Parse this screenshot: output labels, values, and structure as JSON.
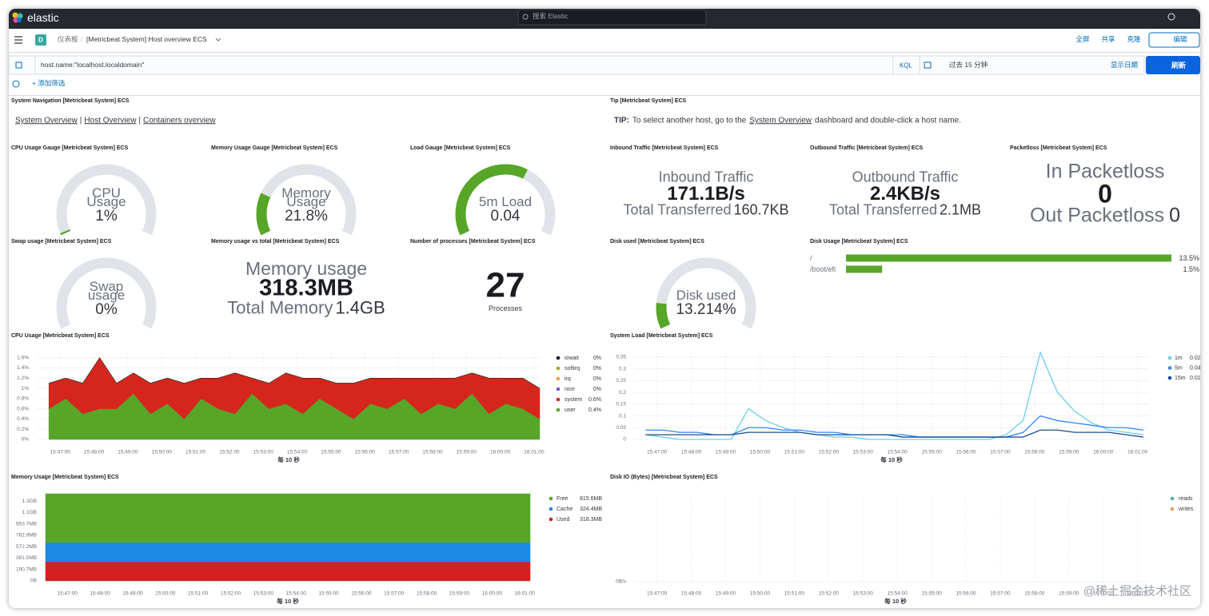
{
  "top_bar": {
    "brand": "elastic",
    "search_placeholder": "搜索 Elastic"
  },
  "nav": {
    "space": "D",
    "breadcrumbs": [
      "仪表板",
      "[Metricbeat System] Host overview ECS"
    ],
    "separator": "/",
    "actions": [
      "全屏",
      "共享",
      "克隆"
    ],
    "edit": "编辑"
  },
  "query": {
    "text": "host.name:\"localhost.localdomain\"",
    "language": "KQL",
    "time_range": "过去 15 分钟",
    "show_dates": "显示日期",
    "refresh": "刷新",
    "add_filter": "+ 添加筛选"
  },
  "navigation": {
    "title": "System Navigation [Metricbeat System] ECS",
    "links": [
      "System Overview",
      "Host Overview",
      "Containers overview"
    ],
    "separator": "|"
  },
  "tip": {
    "title": "Tip [Metricbeat System] ECS",
    "label": "TIP:",
    "text_before": "To select another host, go to the",
    "link": "System Overview",
    "text_after": "dashboard and double-click a host name."
  },
  "gauges": [
    {
      "title": "CPU Usage Gauge [Metricbeat System] ECS",
      "label": "CPU Usage",
      "value": 1,
      "value_label": "1%",
      "range": [
        0,
        100
      ]
    },
    {
      "title": "Memory Usage Gauge [Metricbeat System] ECS",
      "label": "Memory Usage",
      "value": 21.8,
      "value_label": "21.8%",
      "range": [
        0,
        100
      ]
    },
    {
      "title": "Load Gauge [Metricbeat System] ECS",
      "label": "5m Load",
      "value": 0.04,
      "range": [
        0,
        0.065
      ]
    },
    {
      "title": "Swap usage [Metricbeat System] ECS",
      "label": "Swap usage",
      "value": 0,
      "value_label": "0%",
      "range": [
        0,
        100
      ]
    },
    {
      "title": "Disk used [Metricbeat System] ECS",
      "label": "Disk used",
      "value": 13.214,
      "value_label": "13.214%",
      "range": [
        0,
        100
      ]
    }
  ],
  "traffic": [
    {
      "title": "Inbound Traffic [Metricbeat System] ECS",
      "label": "Inbound Traffic",
      "value": "171.1B/s",
      "total_label": "Total Transferred",
      "total_value": "160.7KB"
    },
    {
      "title": "Outbound Traffic [Metricbeat System] ECS",
      "label": "Outbound Traffic",
      "value": "2.4KB/s",
      "total_label": "Total Transferred",
      "total_value": "2.1MB"
    }
  ],
  "packetloss": {
    "title": "Packetloss [Metricbeat System] ECS",
    "in_label": "In Packetloss",
    "in_value": 0,
    "out_label": "Out Packetloss",
    "out_value": 0
  },
  "memory_usage": {
    "title": "Memory usage vs total [Metricbeat System] ECS",
    "label": "Memory usage",
    "value": "318.3MB",
    "total_label": "Total Memory",
    "total_value": "1.4GB"
  },
  "processes": {
    "title": "Number of processes [Metricbeat System] ECS",
    "value": 27,
    "label": "Processes"
  },
  "disk_usage": {
    "title": "Disk Usage [Metricbeat System] ECS",
    "color": "#57a628",
    "rows": [
      {
        "name": "/",
        "value": 13.5,
        "value_label": "13.5%"
      },
      {
        "name": "/boot/efi",
        "value": 1.5,
        "value_label": "1.5%"
      }
    ]
  },
  "chart_data": [
    {
      "type": "area",
      "stacked": true,
      "grid": true,
      "title": "CPU Usage [Metricbeat System] ECS",
      "x_label": "每 10 秒",
      "x": [
        "15:46:40",
        "15:47:10",
        "15:47:40",
        "15:48:10",
        "15:48:40",
        "15:49:10",
        "15:49:40",
        "15:50:10",
        "15:50:40",
        "15:51:10",
        "15:51:40",
        "15:52:10",
        "15:52:40",
        "15:53:10",
        "15:53:40",
        "15:54:10",
        "15:54:40",
        "15:55:10",
        "15:55:40",
        "15:56:10",
        "15:56:40",
        "15:57:10",
        "15:57:40",
        "15:58:10",
        "15:58:40",
        "15:59:10",
        "15:59:40",
        "16:00:10",
        "16:00:40",
        "16:01:10"
      ],
      "xlim": [
        "15:46:20",
        "16:01:10"
      ],
      "xticks": [
        "15:47:00",
        "15:48:00",
        "15:49:00",
        "15:50:00",
        "15:51:00",
        "15:52:00",
        "15:53:00",
        "15:54:00",
        "15:55:00",
        "15:56:00",
        "15:57:00",
        "15:58:00",
        "15:59:00",
        "16:00:00",
        "16:01:00"
      ],
      "ylim": [
        0,
        1.72
      ],
      "yticks": [
        {
          "value": 0,
          "label": "0%"
        },
        {
          "value": 0.2,
          "label": "0.2%"
        },
        {
          "value": 0.4,
          "label": "0.4%"
        },
        {
          "value": 0.6,
          "label": "0.6%"
        },
        {
          "value": 0.8,
          "label": "0.8%"
        },
        {
          "value": 1,
          "label": "1%"
        },
        {
          "value": 1.2,
          "label": "1.2%"
        },
        {
          "value": 1.4,
          "label": "1.4%"
        },
        {
          "value": 1.6,
          "label": "1.6%"
        }
      ],
      "series": [
        {
          "name": "iowait",
          "color": "#1a1c21",
          "legend_value": "0%",
          "values": [
            0,
            0,
            0,
            0,
            0,
            0,
            0,
            0,
            0,
            0,
            0,
            0,
            0,
            0,
            0,
            0,
            0,
            0,
            0,
            0,
            0,
            0,
            0,
            0,
            0,
            0,
            0,
            0,
            0,
            0
          ]
        },
        {
          "name": "softirq",
          "color": "#9fa821",
          "legend_value": "0%",
          "values": [
            0,
            0,
            0,
            0,
            0,
            0,
            0,
            0,
            0,
            0,
            0,
            0,
            0,
            0,
            0,
            0,
            0,
            0,
            0,
            0,
            0,
            0,
            0,
            0,
            0,
            0,
            0,
            0,
            0,
            0
          ]
        },
        {
          "name": "irq",
          "color": "#e7a33a",
          "legend_value": "0%",
          "values": [
            0,
            0,
            0,
            0,
            0,
            0,
            0,
            0,
            0,
            0,
            0,
            0,
            0,
            0,
            0,
            0,
            0,
            0,
            0,
            0,
            0,
            0,
            0,
            0,
            0,
            0,
            0,
            0,
            0,
            0
          ]
        },
        {
          "name": "nice",
          "color": "#6f5bd0",
          "legend_value": "0%",
          "values": [
            0,
            0,
            0,
            0,
            0,
            0,
            0,
            0,
            0,
            0,
            0,
            0,
            0,
            0,
            0,
            0,
            0,
            0,
            0,
            0,
            0,
            0,
            0,
            0,
            0,
            0,
            0,
            0,
            0,
            0
          ]
        },
        {
          "name": "system",
          "color": "#d4261d",
          "legend_value": "0.6%",
          "values": [
            0.5,
            0.4,
            0.6,
            1.0,
            0.5,
            0.4,
            0.6,
            0.5,
            0.7,
            0.4,
            0.6,
            0.8,
            0.3,
            0.5,
            0.6,
            0.7,
            0.4,
            0.5,
            0.7,
            0.5,
            0.6,
            0.4,
            0.7,
            0.5,
            0.6,
            0.4,
            0.7,
            0.5,
            0.6,
            0.6
          ]
        },
        {
          "name": "user",
          "color": "#57a628",
          "legend_value": "0.4%",
          "values": [
            0.6,
            0.8,
            0.5,
            0.6,
            0.6,
            0.9,
            0.5,
            0.7,
            0.4,
            0.8,
            0.6,
            0.5,
            0.9,
            0.6,
            0.7,
            0.5,
            0.8,
            0.6,
            0.4,
            0.7,
            0.6,
            0.8,
            0.5,
            0.7,
            0.6,
            0.9,
            0.5,
            0.7,
            0.6,
            0.4
          ]
        }
      ]
    },
    {
      "type": "line",
      "grid": true,
      "title": "System Load [Metricbeat System] ECS",
      "x_label": "每 10 秒",
      "x": [
        "15:46:40",
        "15:47:10",
        "15:47:40",
        "15:48:10",
        "15:48:40",
        "15:49:10",
        "15:49:40",
        "15:50:10",
        "15:50:40",
        "15:51:10",
        "15:51:40",
        "15:52:10",
        "15:52:40",
        "15:53:10",
        "15:53:40",
        "15:54:10",
        "15:54:40",
        "15:55:10",
        "15:55:40",
        "15:56:10",
        "15:56:40",
        "15:57:10",
        "15:57:40",
        "15:58:10",
        "15:58:40",
        "15:59:10",
        "15:59:40",
        "16:00:10",
        "16:00:40",
        "16:01:10"
      ],
      "xlim": [
        "15:46:20",
        "16:01:20"
      ],
      "xticks": [
        "15:47:00",
        "15:48:00",
        "15:49:00",
        "15:50:00",
        "15:51:00",
        "15:52:00",
        "15:53:00",
        "15:54:00",
        "15:55:00",
        "15:56:00",
        "15:57:00",
        "15:58:00",
        "15:59:00",
        "16:00:00",
        "16:01:00"
      ],
      "ylim": [
        0,
        0.37
      ],
      "yticks": [
        0,
        0.05,
        0.1,
        0.15,
        0.2,
        0.25,
        0.3,
        0.35
      ],
      "series": [
        {
          "name": "1m",
          "color": "#6dccf1",
          "legend_value": "0.02",
          "values": [
            0.02,
            0.01,
            0,
            0,
            0,
            0,
            0.13,
            0.08,
            0.05,
            0.03,
            0.02,
            0.01,
            0.01,
            0,
            0,
            0,
            0,
            0,
            0,
            0,
            0,
            0.02,
            0.08,
            0.37,
            0.2,
            0.12,
            0.07,
            0.04,
            0.03,
            0.02
          ]
        },
        {
          "name": "5m",
          "color": "#3185fc",
          "legend_value": "0.04",
          "values": [
            0.04,
            0.04,
            0.03,
            0.03,
            0.02,
            0.02,
            0.05,
            0.05,
            0.04,
            0.04,
            0.03,
            0.03,
            0.02,
            0.02,
            0.02,
            0.02,
            0.01,
            0.01,
            0.01,
            0.01,
            0.01,
            0.01,
            0.03,
            0.1,
            0.08,
            0.07,
            0.06,
            0.05,
            0.05,
            0.04
          ]
        },
        {
          "name": "15m",
          "color": "#1b4d8f",
          "legend_value": "0.01",
          "values": [
            0.02,
            0.02,
            0.02,
            0.02,
            0.02,
            0.02,
            0.03,
            0.03,
            0.03,
            0.03,
            0.02,
            0.02,
            0.02,
            0.02,
            0.02,
            0.01,
            0.01,
            0.01,
            0.01,
            0.01,
            0.01,
            0.01,
            0.01,
            0.04,
            0.04,
            0.03,
            0.03,
            0.03,
            0.02,
            0.01
          ]
        }
      ]
    },
    {
      "type": "area",
      "stacked": true,
      "grid": true,
      "title": "Memory Usage [Metricbeat System] ECS",
      "x_label": "每 10 秒",
      "x": [
        "15:46:20",
        "16:01:10"
      ],
      "xlim": [
        "15:46:20",
        "16:01:10"
      ],
      "xticks": [
        "15:47:00",
        "15:48:00",
        "15:49:00",
        "15:50:00",
        "15:51:00",
        "15:52:00",
        "15:53:00",
        "15:54:00",
        "15:55:00",
        "15:56:00",
        "15:57:00",
        "15:58:00",
        "15:59:00",
        "16:00:00",
        "16:01:00"
      ],
      "ylim": [
        0,
        1458.3
      ],
      "yticks": [
        {
          "value": 0,
          "label": "0B"
        },
        {
          "value": 190.7,
          "label": "190.7MB"
        },
        {
          "value": 381.5,
          "label": "381.5MB"
        },
        {
          "value": 572.2,
          "label": "572.2MB"
        },
        {
          "value": 762.9,
          "label": "762.9MB"
        },
        {
          "value": 953.7,
          "label": "953.7MB"
        },
        {
          "value": 1144.4,
          "label": "1.1GB"
        },
        {
          "value": 1335.1,
          "label": "1.3GB"
        }
      ],
      "series": [
        {
          "name": "Free",
          "color": "#57a628",
          "legend_value": "815.6MB",
          "values": [
            815.6,
            815.6
          ]
        },
        {
          "name": "Cache",
          "color": "#1e88e5",
          "legend_value": "324.4MB",
          "values": [
            324.4,
            324.4
          ]
        },
        {
          "name": "Used",
          "color": "#d42020",
          "legend_value": "318.3MB",
          "values": [
            318.3,
            318.3
          ]
        }
      ]
    },
    {
      "type": "line",
      "grid": true,
      "title": "Disk IO (Bytes) [Metricbeat System] ECS",
      "x_label": "每 10 秒",
      "xlim": [
        "15:46:20",
        "16:01:20"
      ],
      "xticks": [
        "15:47:00",
        "15:48:00",
        "15:49:00",
        "15:50:00",
        "15:51:00",
        "15:52:00",
        "15:53:00",
        "15:54:00",
        "15:55:00",
        "15:56:00",
        "15:57:00",
        "15:58:00",
        "15:59:00",
        "16:00:00",
        "16:01:00"
      ],
      "yticks": [
        {
          "value": 0,
          "label": "0B/s"
        }
      ],
      "series": [
        {
          "name": "reads",
          "color": "#54b399"
        },
        {
          "name": "writes",
          "color": "#d6a35c"
        }
      ]
    }
  ],
  "watermark": "@稀土掘金技术社区"
}
